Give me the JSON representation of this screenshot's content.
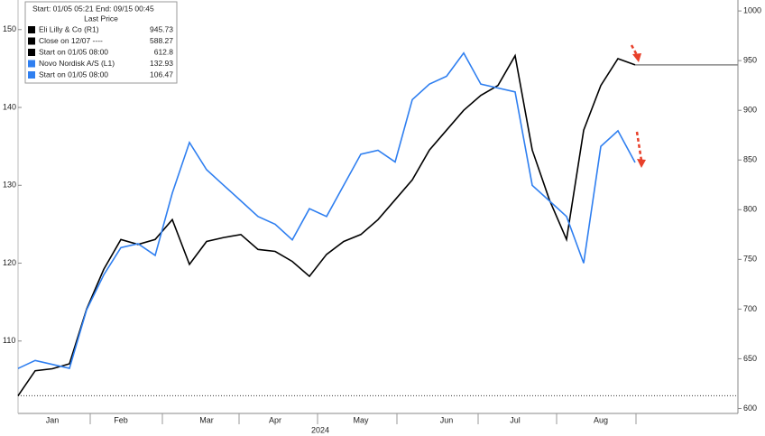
{
  "chart_data": {
    "type": "line",
    "categories": [
      null,
      null,
      "Jan",
      null,
      null,
      null,
      "Feb",
      null,
      null,
      null,
      null,
      "Mar",
      null,
      null,
      null,
      "Apr",
      null,
      null,
      null,
      null,
      "May",
      null,
      null,
      null,
      null,
      "Jun",
      null,
      null,
      null,
      "Jul",
      null,
      null,
      null,
      null,
      "Aug",
      null,
      null
    ],
    "xlabel": "2024",
    "series": [
      {
        "name": "Eli Lilly & Co  (R1)",
        "color": "#000000",
        "axis": "y2",
        "values": [
          612.8,
          638,
          640,
          645,
          700,
          740,
          770,
          765,
          770,
          790,
          745,
          768,
          772,
          775,
          760,
          758,
          748,
          733,
          755,
          768,
          775,
          790,
          810,
          830,
          860,
          880,
          900,
          915,
          925,
          955,
          860,
          810,
          770,
          880,
          925,
          952,
          945.73
        ]
      },
      {
        "name": "Novo Nordisk A/S  (L1)",
        "color": "#2f7ff0",
        "values": [
          106.47,
          107.5,
          107,
          106.5,
          114,
          118.5,
          122,
          122.5,
          121,
          129,
          135.5,
          132,
          130,
          128,
          126,
          125,
          123,
          127,
          126,
          130,
          134,
          134.5,
          133,
          141,
          143,
          144,
          147,
          143,
          142.5,
          142,
          130,
          128,
          126,
          120,
          135,
          137,
          132.93
        ]
      }
    ],
    "ylim": [
      100.7,
      153.8
    ],
    "yticks": [
      110,
      120,
      130,
      140,
      150
    ],
    "y2lim": [
      595,
      1011
    ],
    "y2ticks": [
      600,
      650,
      700,
      750,
      800,
      850,
      900,
      950,
      1000
    ],
    "legend_header": "Start: 01/05 05:21 End: 09/15 00:45",
    "legend_subheader": "Last Price",
    "legend": [
      {
        "label": "Eli Lilly & Co  (R1)",
        "value": 945.73,
        "color": "#000000"
      },
      {
        "label": "Close on 12/07  ----",
        "value": 588.27,
        "color": "#000000"
      },
      {
        "label": "Start on 01/05 08:00",
        "value": 612.8,
        "color": "#000000"
      },
      {
        "label": "Novo Nordisk A/S  (L1)",
        "value": 132.93,
        "color": "#2f7ff0"
      },
      {
        "label": "Start on 01/05 08:00",
        "value": 106.47,
        "color": "#2f7ff0"
      }
    ]
  }
}
